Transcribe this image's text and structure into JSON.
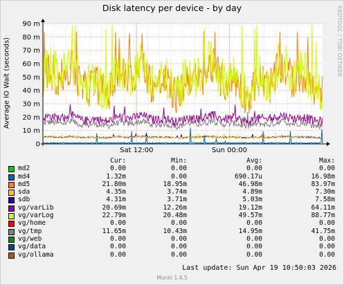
{
  "chart_data": {
    "type": "line",
    "title": "Disk latency per device - by day",
    "ylabel": "Average IO Wait (seconds)",
    "ylim": [
      0,
      0.09
    ],
    "yticks": [
      {
        "value": 0,
        "label": "0"
      },
      {
        "value": 0.01,
        "label": "10 m"
      },
      {
        "value": 0.02,
        "label": "20 m"
      },
      {
        "value": 0.03,
        "label": "30 m"
      },
      {
        "value": 0.04,
        "label": "40 m"
      },
      {
        "value": 0.05,
        "label": "50 m"
      },
      {
        "value": 0.06,
        "label": "60 m"
      },
      {
        "value": 0.07,
        "label": "70 m"
      },
      {
        "value": 0.08,
        "label": "80 m"
      },
      {
        "value": 0.09,
        "label": "90 m"
      }
    ],
    "xticks": [
      {
        "pos": 0.335,
        "label": "Sat 12:00"
      },
      {
        "pos": 0.667,
        "label": "Sun 00:00"
      }
    ],
    "grid": true,
    "legend_columns": [
      "Cur:",
      "Min:",
      "Avg:",
      "Max:"
    ],
    "series": [
      {
        "name": "md2",
        "color": "#00cc00",
        "cur": "0.00",
        "min": "0.00",
        "avg": "0.00",
        "max": "0.00",
        "draw": "flat",
        "level": 0,
        "amp": 0
      },
      {
        "name": "md4",
        "color": "#0066b3",
        "cur": "1.32m",
        "min": "0.00",
        "avg": "690.17u",
        "max": "16.98m",
        "draw": "spiky",
        "level": 0.0007,
        "amp": 0.0004
      },
      {
        "name": "md5",
        "color": "#ff8000",
        "cur": "21.80m",
        "min": "18.95m",
        "avg": "46.98m",
        "max": "83.97m",
        "draw": "noisy",
        "level": 0.047,
        "amp": 0.018
      },
      {
        "name": "sda",
        "color": "#ffcc00",
        "cur": "4.35m",
        "min": "3.74m",
        "avg": "4.89m",
        "max": "7.30m",
        "draw": "noisy",
        "level": 0.0049,
        "amp": 0.0008
      },
      {
        "name": "sdb",
        "color": "#330099",
        "cur": "4.31m",
        "min": "3.71m",
        "avg": "5.03m",
        "max": "7.58m",
        "draw": "noisy",
        "level": 0.005,
        "amp": 0.0008
      },
      {
        "name": "vg/varLib",
        "color": "#990099",
        "cur": "20.69m",
        "min": "12.26m",
        "avg": "19.12m",
        "max": "64.11m",
        "draw": "noisy",
        "level": 0.019,
        "amp": 0.004
      },
      {
        "name": "vg/varLog",
        "color": "#ccff00",
        "cur": "22.79m",
        "min": "20.48m",
        "avg": "49.57m",
        "max": "88.77m",
        "draw": "noisy",
        "level": 0.05,
        "amp": 0.02
      },
      {
        "name": "vg/home",
        "color": "#ff0000",
        "cur": "0.00",
        "min": "0.00",
        "avg": "0.00",
        "max": "0.00",
        "draw": "flat",
        "level": 0,
        "amp": 0
      },
      {
        "name": "vg/tmp",
        "color": "#808080",
        "cur": "11.65m",
        "min": "10.43m",
        "avg": "14.95m",
        "max": "41.75m",
        "draw": "noisy",
        "level": 0.015,
        "amp": 0.003
      },
      {
        "name": "vg/web",
        "color": "#008f00",
        "cur": "0.00",
        "min": "0.00",
        "avg": "0.00",
        "max": "0.00",
        "draw": "flat",
        "level": 0,
        "amp": 0
      },
      {
        "name": "vg/data",
        "color": "#00487d",
        "cur": "0.00",
        "min": "0.00",
        "avg": "0.00",
        "max": "0.00",
        "draw": "flat",
        "level": 0,
        "amp": 0
      },
      {
        "name": "vg/ollama",
        "color": "#b35a00",
        "cur": "0.00",
        "min": "0.00",
        "avg": "0.00",
        "max": "0.00",
        "draw": "flat",
        "level": 0,
        "amp": 0
      }
    ]
  },
  "watermark": "RRDTOOL / TOBI OETIKER",
  "last_update": "Last update:  Sun Apr 19 10:50:03 2026",
  "version": "Munin 1.4.5"
}
